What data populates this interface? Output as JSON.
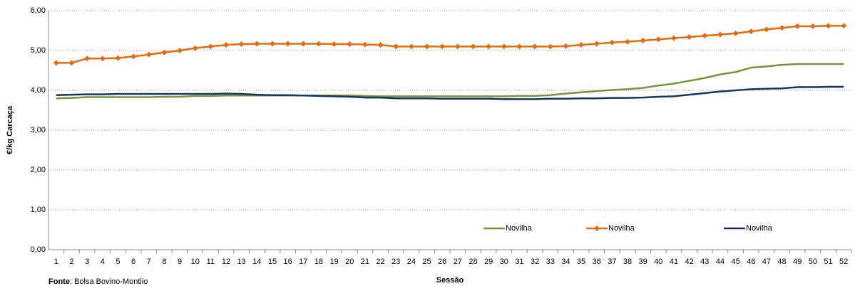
{
  "chart_data": {
    "type": "line",
    "y_label": "€/kg Carcaça",
    "x_label": "Sessão",
    "source_label": "Fonte",
    "source": ":  Bolsa Bovino-Montiio",
    "categories": [
      1,
      2,
      3,
      4,
      5,
      6,
      7,
      8,
      9,
      10,
      11,
      12,
      13,
      14,
      15,
      16,
      17,
      18,
      19,
      20,
      21,
      22,
      23,
      24,
      25,
      26,
      27,
      28,
      29,
      30,
      31,
      32,
      33,
      34,
      35,
      36,
      37,
      38,
      39,
      40,
      41,
      42,
      43,
      44,
      45,
      46,
      47,
      48,
      49,
      50,
      51,
      52
    ],
    "ylim": [
      0,
      6
    ],
    "yticks": [
      {
        "value": 0,
        "label": "0,00"
      },
      {
        "value": 1,
        "label": "1,00"
      },
      {
        "value": 2,
        "label": "2,00"
      },
      {
        "value": 3,
        "label": "3,00"
      },
      {
        "value": 4,
        "label": "4,00"
      },
      {
        "value": 5,
        "label": "5,00"
      },
      {
        "value": 6,
        "label": "6,00"
      }
    ],
    "grid": true,
    "series": [
      {
        "name": "Novilha",
        "color": "#77933c",
        "marker": false,
        "values": [
          3.8,
          3.81,
          3.83,
          3.83,
          3.83,
          3.83,
          3.83,
          3.84,
          3.84,
          3.86,
          3.86,
          3.87,
          3.87,
          3.87,
          3.87,
          3.87,
          3.87,
          3.87,
          3.87,
          3.87,
          3.86,
          3.85,
          3.85,
          3.85,
          3.85,
          3.85,
          3.85,
          3.85,
          3.85,
          3.85,
          3.86,
          3.86,
          3.88,
          3.92,
          3.95,
          3.98,
          4.01,
          4.03,
          4.06,
          4.12,
          4.17,
          4.24,
          4.31,
          4.4,
          4.46,
          4.57,
          4.6,
          4.64,
          4.66,
          4.66,
          4.66,
          4.66
        ]
      },
      {
        "name": "Novilha",
        "color": "#e46c0a",
        "marker": true,
        "values": [
          4.69,
          4.69,
          4.8,
          4.8,
          4.81,
          4.85,
          4.9,
          4.95,
          5.0,
          5.06,
          5.1,
          5.14,
          5.16,
          5.17,
          5.17,
          5.17,
          5.17,
          5.17,
          5.16,
          5.16,
          5.15,
          5.14,
          5.1,
          5.1,
          5.1,
          5.1,
          5.1,
          5.1,
          5.1,
          5.1,
          5.1,
          5.1,
          5.1,
          5.11,
          5.14,
          5.17,
          5.2,
          5.22,
          5.25,
          5.28,
          5.31,
          5.34,
          5.37,
          5.4,
          5.43,
          5.48,
          5.53,
          5.57,
          5.61,
          5.61,
          5.62,
          5.62
        ]
      },
      {
        "name": "Novilha",
        "color": "#17365d",
        "marker": false,
        "values": [
          3.88,
          3.89,
          3.9,
          3.9,
          3.91,
          3.91,
          3.91,
          3.91,
          3.91,
          3.91,
          3.91,
          3.92,
          3.91,
          3.89,
          3.88,
          3.88,
          3.87,
          3.86,
          3.85,
          3.84,
          3.82,
          3.82,
          3.8,
          3.8,
          3.8,
          3.79,
          3.79,
          3.79,
          3.79,
          3.78,
          3.78,
          3.78,
          3.79,
          3.79,
          3.8,
          3.8,
          3.81,
          3.81,
          3.82,
          3.84,
          3.85,
          3.89,
          3.93,
          3.97,
          4.0,
          4.03,
          4.04,
          4.05,
          4.08,
          4.08,
          4.09,
          4.09
        ]
      }
    ]
  }
}
